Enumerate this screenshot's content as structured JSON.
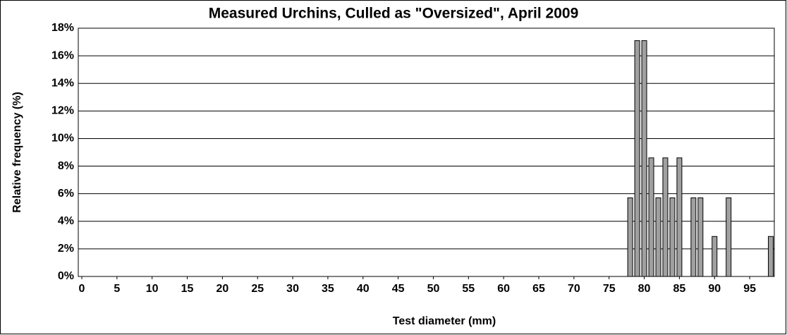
{
  "chart_data": {
    "type": "bar",
    "title": "Measured Urchins, Culled as \"Oversized\", April 2009",
    "x_label": "Test diameter (mm)",
    "y_label": "Relative frequency (%)",
    "x": [
      78,
      79,
      80,
      81,
      82,
      83,
      84,
      85,
      87,
      88,
      90,
      92,
      98
    ],
    "values": [
      5.7,
      17.1,
      17.1,
      8.6,
      5.7,
      8.6,
      5.7,
      8.6,
      5.7,
      5.7,
      2.9,
      5.7,
      2.9
    ],
    "color": "#a0a0a0",
    "xlim": [
      -0.5,
      98.5
    ],
    "xticks": [
      0,
      5,
      10,
      15,
      20,
      25,
      30,
      35,
      40,
      45,
      50,
      55,
      60,
      65,
      70,
      75,
      80,
      85,
      90,
      95
    ],
    "ylim": [
      0,
      18
    ],
    "yticks": [
      {
        "value": 0,
        "label": "0%"
      },
      {
        "value": 2,
        "label": "2%"
      },
      {
        "value": 4,
        "label": "4%"
      },
      {
        "value": 6,
        "label": "6%"
      },
      {
        "value": 8,
        "label": "8%"
      },
      {
        "value": 10,
        "label": "10%"
      },
      {
        "value": 12,
        "label": "12%"
      },
      {
        "value": 14,
        "label": "14%"
      },
      {
        "value": 16,
        "label": "16%"
      },
      {
        "value": 18,
        "label": "18%"
      }
    ],
    "grid": true
  }
}
